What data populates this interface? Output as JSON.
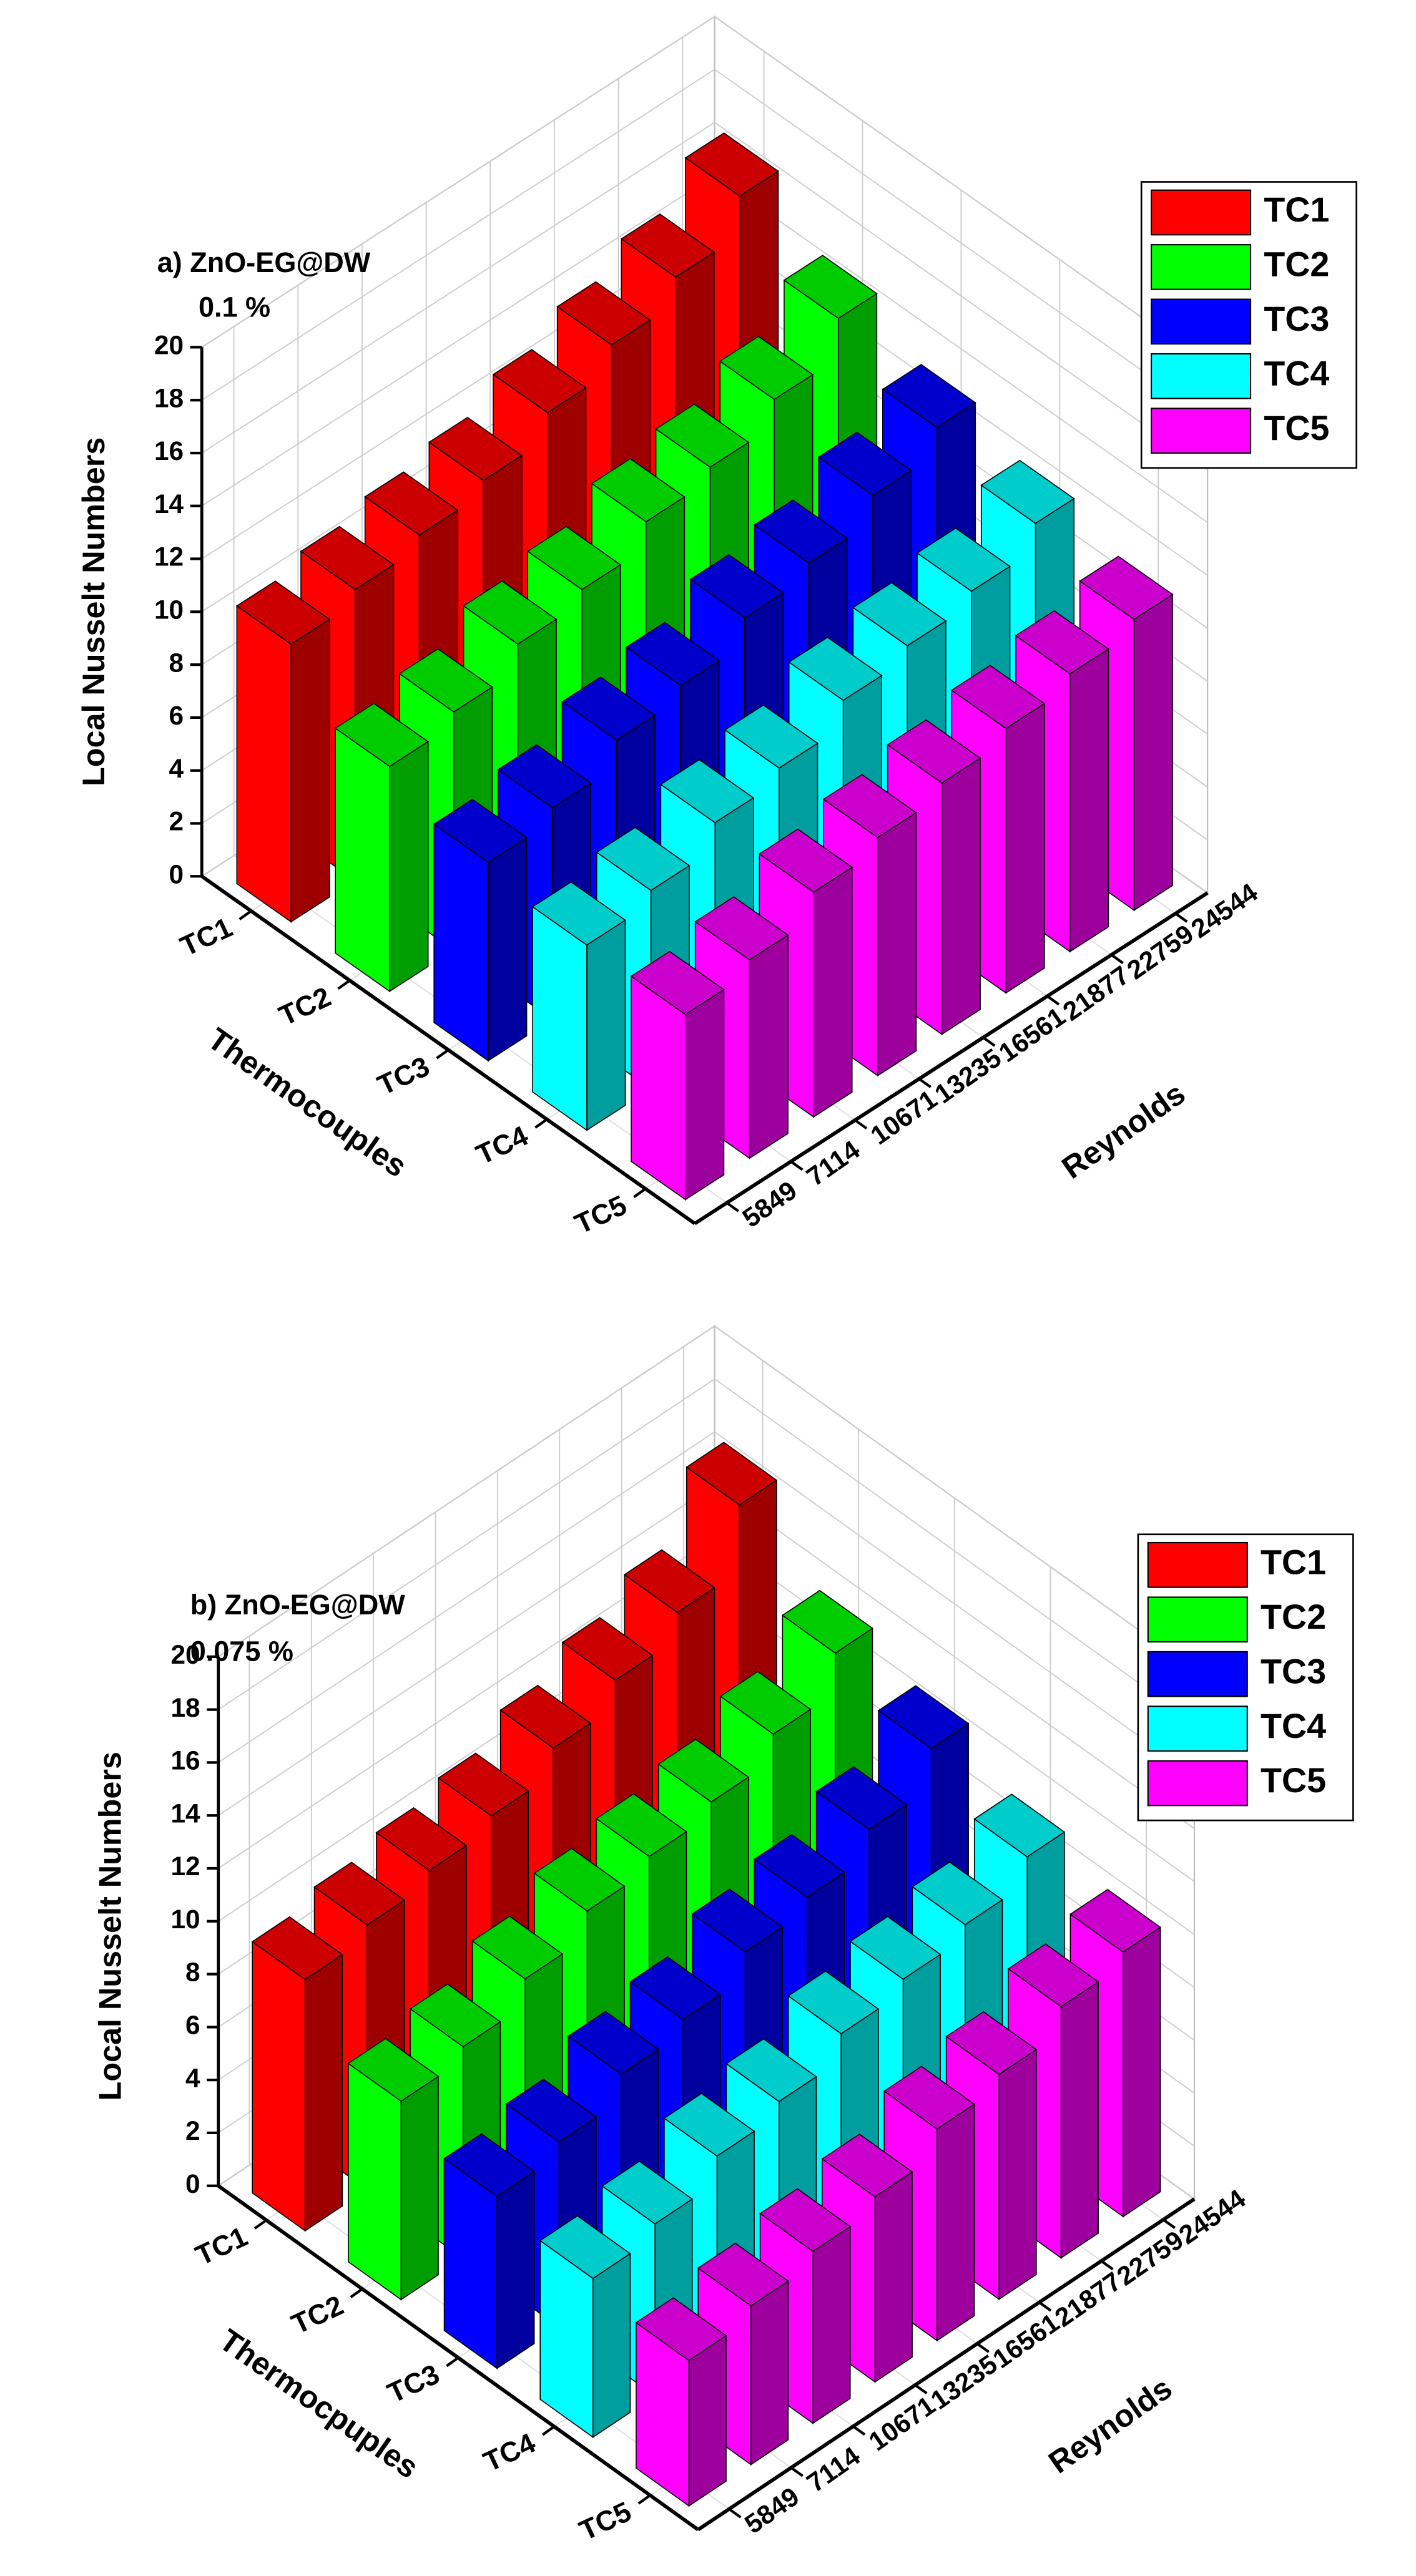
{
  "chart_data": [
    {
      "type": "bar3d",
      "annotations": [
        "a) ZnO-EG@DW",
        "0.1 %"
      ],
      "ylabel": "Local Nusselt Numbers",
      "xlabel": "Thermocouples",
      "zlabel": "Reynolds",
      "x_categories": [
        "TC1",
        "TC2",
        "TC3",
        "TC4",
        "TC5"
      ],
      "categories": [
        "5849",
        "7114",
        "10671",
        "13235",
        "16561",
        "21877",
        "22759",
        "24544"
      ],
      "series": [
        {
          "name": "TC1",
          "color": "#ff0000",
          "values": [
            10.5,
            11,
            11.5,
            12,
            13,
            14,
            15,
            16.5
          ]
        },
        {
          "name": "TC2",
          "color": "#00ff00",
          "values": [
            8.5,
            9,
            10,
            10.5,
            11.5,
            12,
            13,
            14.5
          ]
        },
        {
          "name": "TC3",
          "color": "#0000ff",
          "values": [
            7.5,
            8,
            9,
            9.5,
            10.5,
            11,
            12,
            13
          ]
        },
        {
          "name": "TC4",
          "color": "#00ffff",
          "values": [
            7,
            7.5,
            8.5,
            9,
            10,
            10.5,
            11,
            12
          ]
        },
        {
          "name": "TC5",
          "color": "#ff00ff",
          "values": [
            7,
            7.5,
            8.5,
            9,
            9.5,
            10,
            10.5,
            11
          ]
        }
      ],
      "ylim": [
        0,
        20
      ],
      "yticks": [
        0,
        2,
        4,
        6,
        8,
        10,
        12,
        14,
        16,
        18,
        20
      ],
      "grid": true,
      "legend": "upper right"
    },
    {
      "type": "bar3d",
      "annotations": [
        "b) ZnO-EG@DW",
        "0.075 %"
      ],
      "ylabel": "Local Nusselt Numbers",
      "xlabel": "Thermocpuples",
      "zlabel": "Reynolds",
      "x_categories": [
        "TC1",
        "TC2",
        "TC3",
        "TC4",
        "TC5"
      ],
      "categories": [
        "5849",
        "7114",
        "10671",
        "13235",
        "16561",
        "21877",
        "22759",
        "24544"
      ],
      "series": [
        {
          "name": "TC1",
          "color": "#ff0000",
          "values": [
            9.5,
            10,
            10.5,
            11,
            12,
            13,
            14,
            16.5
          ]
        },
        {
          "name": "TC2",
          "color": "#00ff00",
          "values": [
            7.5,
            8,
            9,
            10,
            10.5,
            11,
            12,
            13.5
          ]
        },
        {
          "name": "TC3",
          "color": "#0000ff",
          "values": [
            6.5,
            7,
            8,
            8.5,
            9.5,
            10,
            11,
            12.5
          ]
        },
        {
          "name": "TC4",
          "color": "#00ffff",
          "values": [
            6,
            6.5,
            7.5,
            8,
            9,
            9.5,
            10,
            11
          ]
        },
        {
          "name": "TC5",
          "color": "#ff00ff",
          "values": [
            5.5,
            6,
            6.5,
            7,
            8,
            8.5,
            9.5,
            10
          ]
        }
      ],
      "ylim": [
        0,
        20
      ],
      "yticks": [
        0,
        2,
        4,
        6,
        8,
        10,
        12,
        14,
        16,
        18,
        20
      ],
      "grid": true,
      "legend": "upper right"
    }
  ]
}
